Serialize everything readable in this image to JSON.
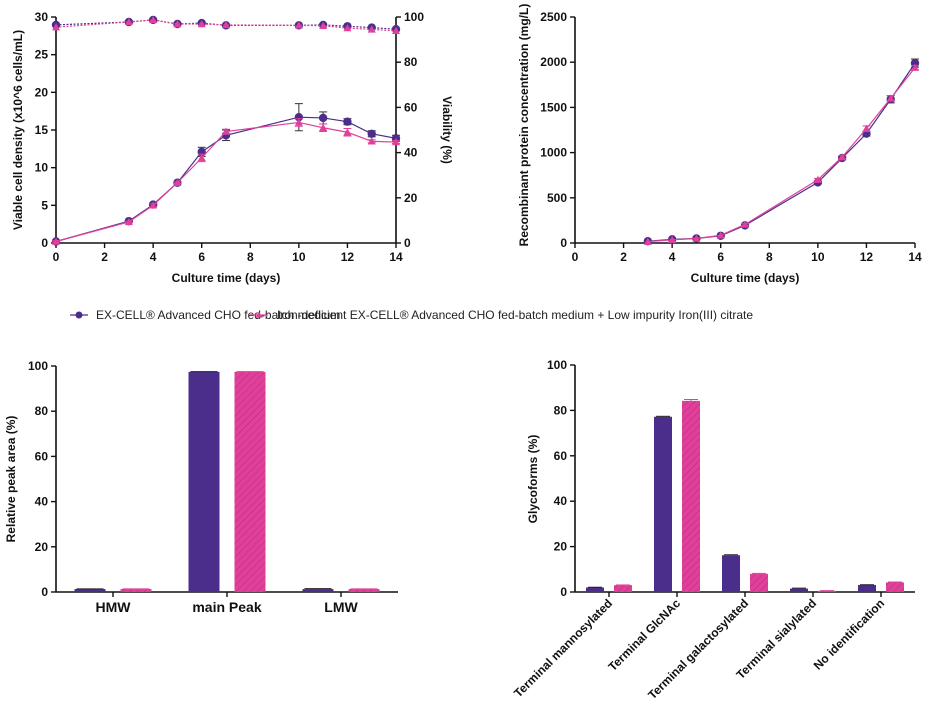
{
  "colors": {
    "series_a": "#4b2e8c",
    "series_b": "#e0409a"
  },
  "legend": {
    "items": [
      {
        "label": "EX-CELL® Advanced CHO fed-batch medium",
        "marker": "circle"
      },
      {
        "label": "Iron-deficient EX-CELL® Advanced CHO fed-batch medium + Low impurity Iron(III) citrate",
        "marker": "triangle"
      }
    ],
    "placement": "center"
  },
  "chart_data": [
    {
      "id": "vcd",
      "type": "line",
      "title": "",
      "xlabel": "Culture time (days)",
      "ylabel": "Viable cell density (x10^6 cells/mL)",
      "y2label": "Viability (%)",
      "xlim": [
        0,
        14
      ],
      "ylim": [
        0,
        30
      ],
      "y2lim": [
        0,
        100
      ],
      "xticks": [
        0,
        2,
        4,
        6,
        8,
        10,
        12,
        14
      ],
      "yticks": [
        0,
        5,
        10,
        15,
        20,
        25,
        30
      ],
      "y2ticks": [
        0,
        20,
        40,
        60,
        80,
        100
      ],
      "grid": false,
      "x": [
        0,
        3,
        4,
        5,
        6,
        7,
        10,
        11,
        12,
        13,
        14
      ],
      "series": [
        {
          "name": "EX-CELL® Advanced CHO fed-batch medium",
          "axis": "left",
          "style": "solid",
          "marker": "circle",
          "values": [
            0.2,
            2.9,
            5.1,
            8.0,
            12.1,
            14.3,
            16.7,
            16.6,
            16.1,
            14.5,
            13.9
          ],
          "errors": [
            0.1,
            0.1,
            0.2,
            0.1,
            0.6,
            0.7,
            1.8,
            0.8,
            0.4,
            0.4,
            0.4
          ]
        },
        {
          "name": "Iron-deficient EX-CELL® Advanced CHO fed-batch medium + Low impurity Iron(III) citrate",
          "axis": "left",
          "style": "solid",
          "marker": "triangle",
          "values": [
            0.2,
            2.8,
            5.0,
            8.0,
            11.3,
            14.8,
            16.0,
            15.3,
            14.7,
            13.5,
            13.4
          ],
          "errors": [
            0.1,
            0.1,
            0.2,
            0.1,
            0.5,
            0.3,
            0.5,
            0.5,
            0.5,
            0.2,
            0.2
          ]
        },
        {
          "name": "EX-CELL® Advanced CHO fed-batch medium (viability)",
          "axis": "right",
          "style": "dashed",
          "marker": "circle",
          "values": [
            96.5,
            97.8,
            98.7,
            96.9,
            97.3,
            96.3,
            96.3,
            96.5,
            95.9,
            95.3,
            94.6
          ],
          "errors": [
            0,
            0,
            0,
            0,
            0,
            0,
            0,
            0,
            0,
            0,
            0
          ]
        },
        {
          "name": "Iron-deficient EX-CELL® Advanced CHO fed-batch medium + Low impurity Iron(III) citrate (viability)",
          "axis": "right",
          "style": "dashed",
          "marker": "triangle",
          "values": [
            95.5,
            97.8,
            98.7,
            96.9,
            96.9,
            96.5,
            96.3,
            96.1,
            95.1,
            94.5,
            93.9
          ],
          "errors": [
            0,
            0,
            0,
            0,
            0,
            0,
            0,
            0,
            0,
            0,
            0
          ]
        }
      ]
    },
    {
      "id": "titer",
      "type": "line",
      "title": "",
      "xlabel": "Culture time (days)",
      "ylabel": "Recombinant protein concentration (mg/L)",
      "xlim": [
        0,
        14
      ],
      "ylim": [
        0,
        2500
      ],
      "xticks": [
        0,
        2,
        4,
        6,
        8,
        10,
        12,
        14
      ],
      "yticks": [
        0,
        500,
        1000,
        1500,
        2000,
        2500
      ],
      "grid": false,
      "x": [
        3,
        4,
        5,
        6,
        7,
        10,
        11,
        12,
        13,
        14
      ],
      "series": [
        {
          "name": "EX-CELL® Advanced CHO fed-batch medium",
          "marker": "circle",
          "values": [
            20,
            40,
            50,
            80,
            195,
            670,
            940,
            1210,
            1590,
            1990
          ],
          "errors": [
            0,
            0,
            0,
            0,
            10,
            15,
            15,
            25,
            40,
            45
          ]
        },
        {
          "name": "Iron-deficient EX-CELL® Advanced CHO fed-batch medium + Low impurity Iron(III) citrate",
          "marker": "triangle",
          "values": [
            15,
            35,
            50,
            85,
            205,
            700,
            950,
            1265,
            1600,
            1940
          ],
          "errors": [
            0,
            0,
            0,
            0,
            10,
            15,
            15,
            30,
            30,
            25
          ]
        }
      ]
    },
    {
      "id": "sec",
      "type": "bar",
      "title": "",
      "xlabel": "",
      "ylabel": "Relative peak area (%)",
      "ylim": [
        0,
        100
      ],
      "yticks": [
        0,
        20,
        40,
        60,
        80,
        100
      ],
      "grid": false,
      "categories": [
        "HMW",
        "main Peak",
        "LMW"
      ],
      "series": [
        {
          "name": "EX-CELL® Advanced CHO fed-batch medium",
          "values": [
            1.3,
            97.4,
            1.3
          ],
          "errors": [
            0.1,
            0.1,
            0.2
          ],
          "pattern": "solid"
        },
        {
          "name": "Iron-deficient EX-CELL® Advanced CHO fed-batch medium + Low impurity Iron(III) citrate",
          "values": [
            1.3,
            97.4,
            1.3
          ],
          "errors": [
            0.1,
            0.1,
            0.1
          ],
          "pattern": "hatched"
        }
      ]
    },
    {
      "id": "glyco",
      "type": "bar",
      "title": "",
      "xlabel": "",
      "ylabel": "Glycoforms (%)",
      "ylim": [
        0,
        100
      ],
      "yticks": [
        0,
        20,
        40,
        60,
        80,
        100
      ],
      "grid": false,
      "categories": [
        "Terminal mannosylated",
        "Terminal GlcNAc",
        "Terminal galactosylated",
        "Terminal sialylated",
        "No identification"
      ],
      "series": [
        {
          "name": "EX-CELL® Advanced CHO fed-batch medium",
          "values": [
            2.0,
            77.2,
            16.2,
            1.5,
            3.1
          ],
          "errors": [
            0.1,
            0.2,
            0.2,
            0.2,
            0.1
          ],
          "pattern": "solid"
        },
        {
          "name": "Iron-deficient EX-CELL® Advanced CHO fed-batch medium + Low impurity Iron(III) citrate",
          "values": [
            3.0,
            84.2,
            8.0,
            0.5,
            4.2
          ],
          "errors": [
            0.1,
            0.6,
            0.2,
            0.1,
            0.2
          ],
          "pattern": "hatched"
        }
      ]
    }
  ]
}
